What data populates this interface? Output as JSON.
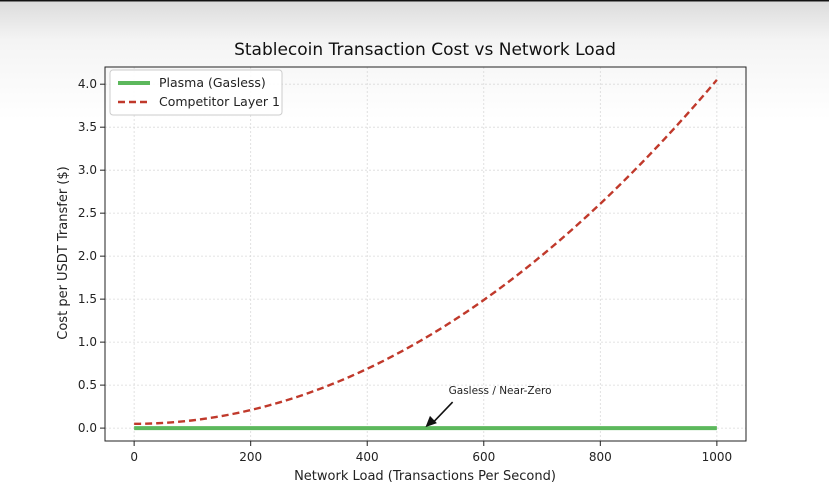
{
  "chart_data": {
    "type": "line",
    "title": "Stablecoin Transaction Cost vs Network Load",
    "xlabel": "Network Load (Transactions Per Second)",
    "ylabel": "Cost per USDT Transfer ($)",
    "xlim": [
      -50,
      1050
    ],
    "ylim": [
      -0.15,
      4.2
    ],
    "xticks": [
      0,
      200,
      400,
      600,
      800,
      1000
    ],
    "xtick_labels": [
      "0",
      "200",
      "400",
      "600",
      "800",
      "1000"
    ],
    "yticks": [
      0.0,
      0.5,
      1.0,
      1.5,
      2.0,
      2.5,
      3.0,
      3.5,
      4.0
    ],
    "ytick_labels": [
      "0.0",
      "0.5",
      "1.0",
      "1.5",
      "2.0",
      "2.5",
      "3.0",
      "3.5",
      "4.0"
    ],
    "grid": true,
    "legend_position": "top-left",
    "series": [
      {
        "name": "Plasma (Gasless)",
        "color": "#5cb85c",
        "style": "solid",
        "x": [
          0,
          1000
        ],
        "y": [
          0.0,
          0.0
        ]
      },
      {
        "name": "Competitor Layer 1",
        "color": "#c0392b",
        "style": "dashed",
        "x": [
          0,
          100,
          200,
          300,
          400,
          500,
          600,
          700,
          800,
          900,
          1000
        ],
        "y": [
          0.05,
          0.09,
          0.21,
          0.41,
          0.69,
          1.05,
          1.49,
          2.01,
          2.61,
          3.29,
          4.05
        ]
      }
    ],
    "annotations": [
      {
        "text": "Gasless / Near-Zero",
        "x": 500,
        "y": 0.0,
        "text_x": 550,
        "text_y": 0.35
      }
    ]
  }
}
